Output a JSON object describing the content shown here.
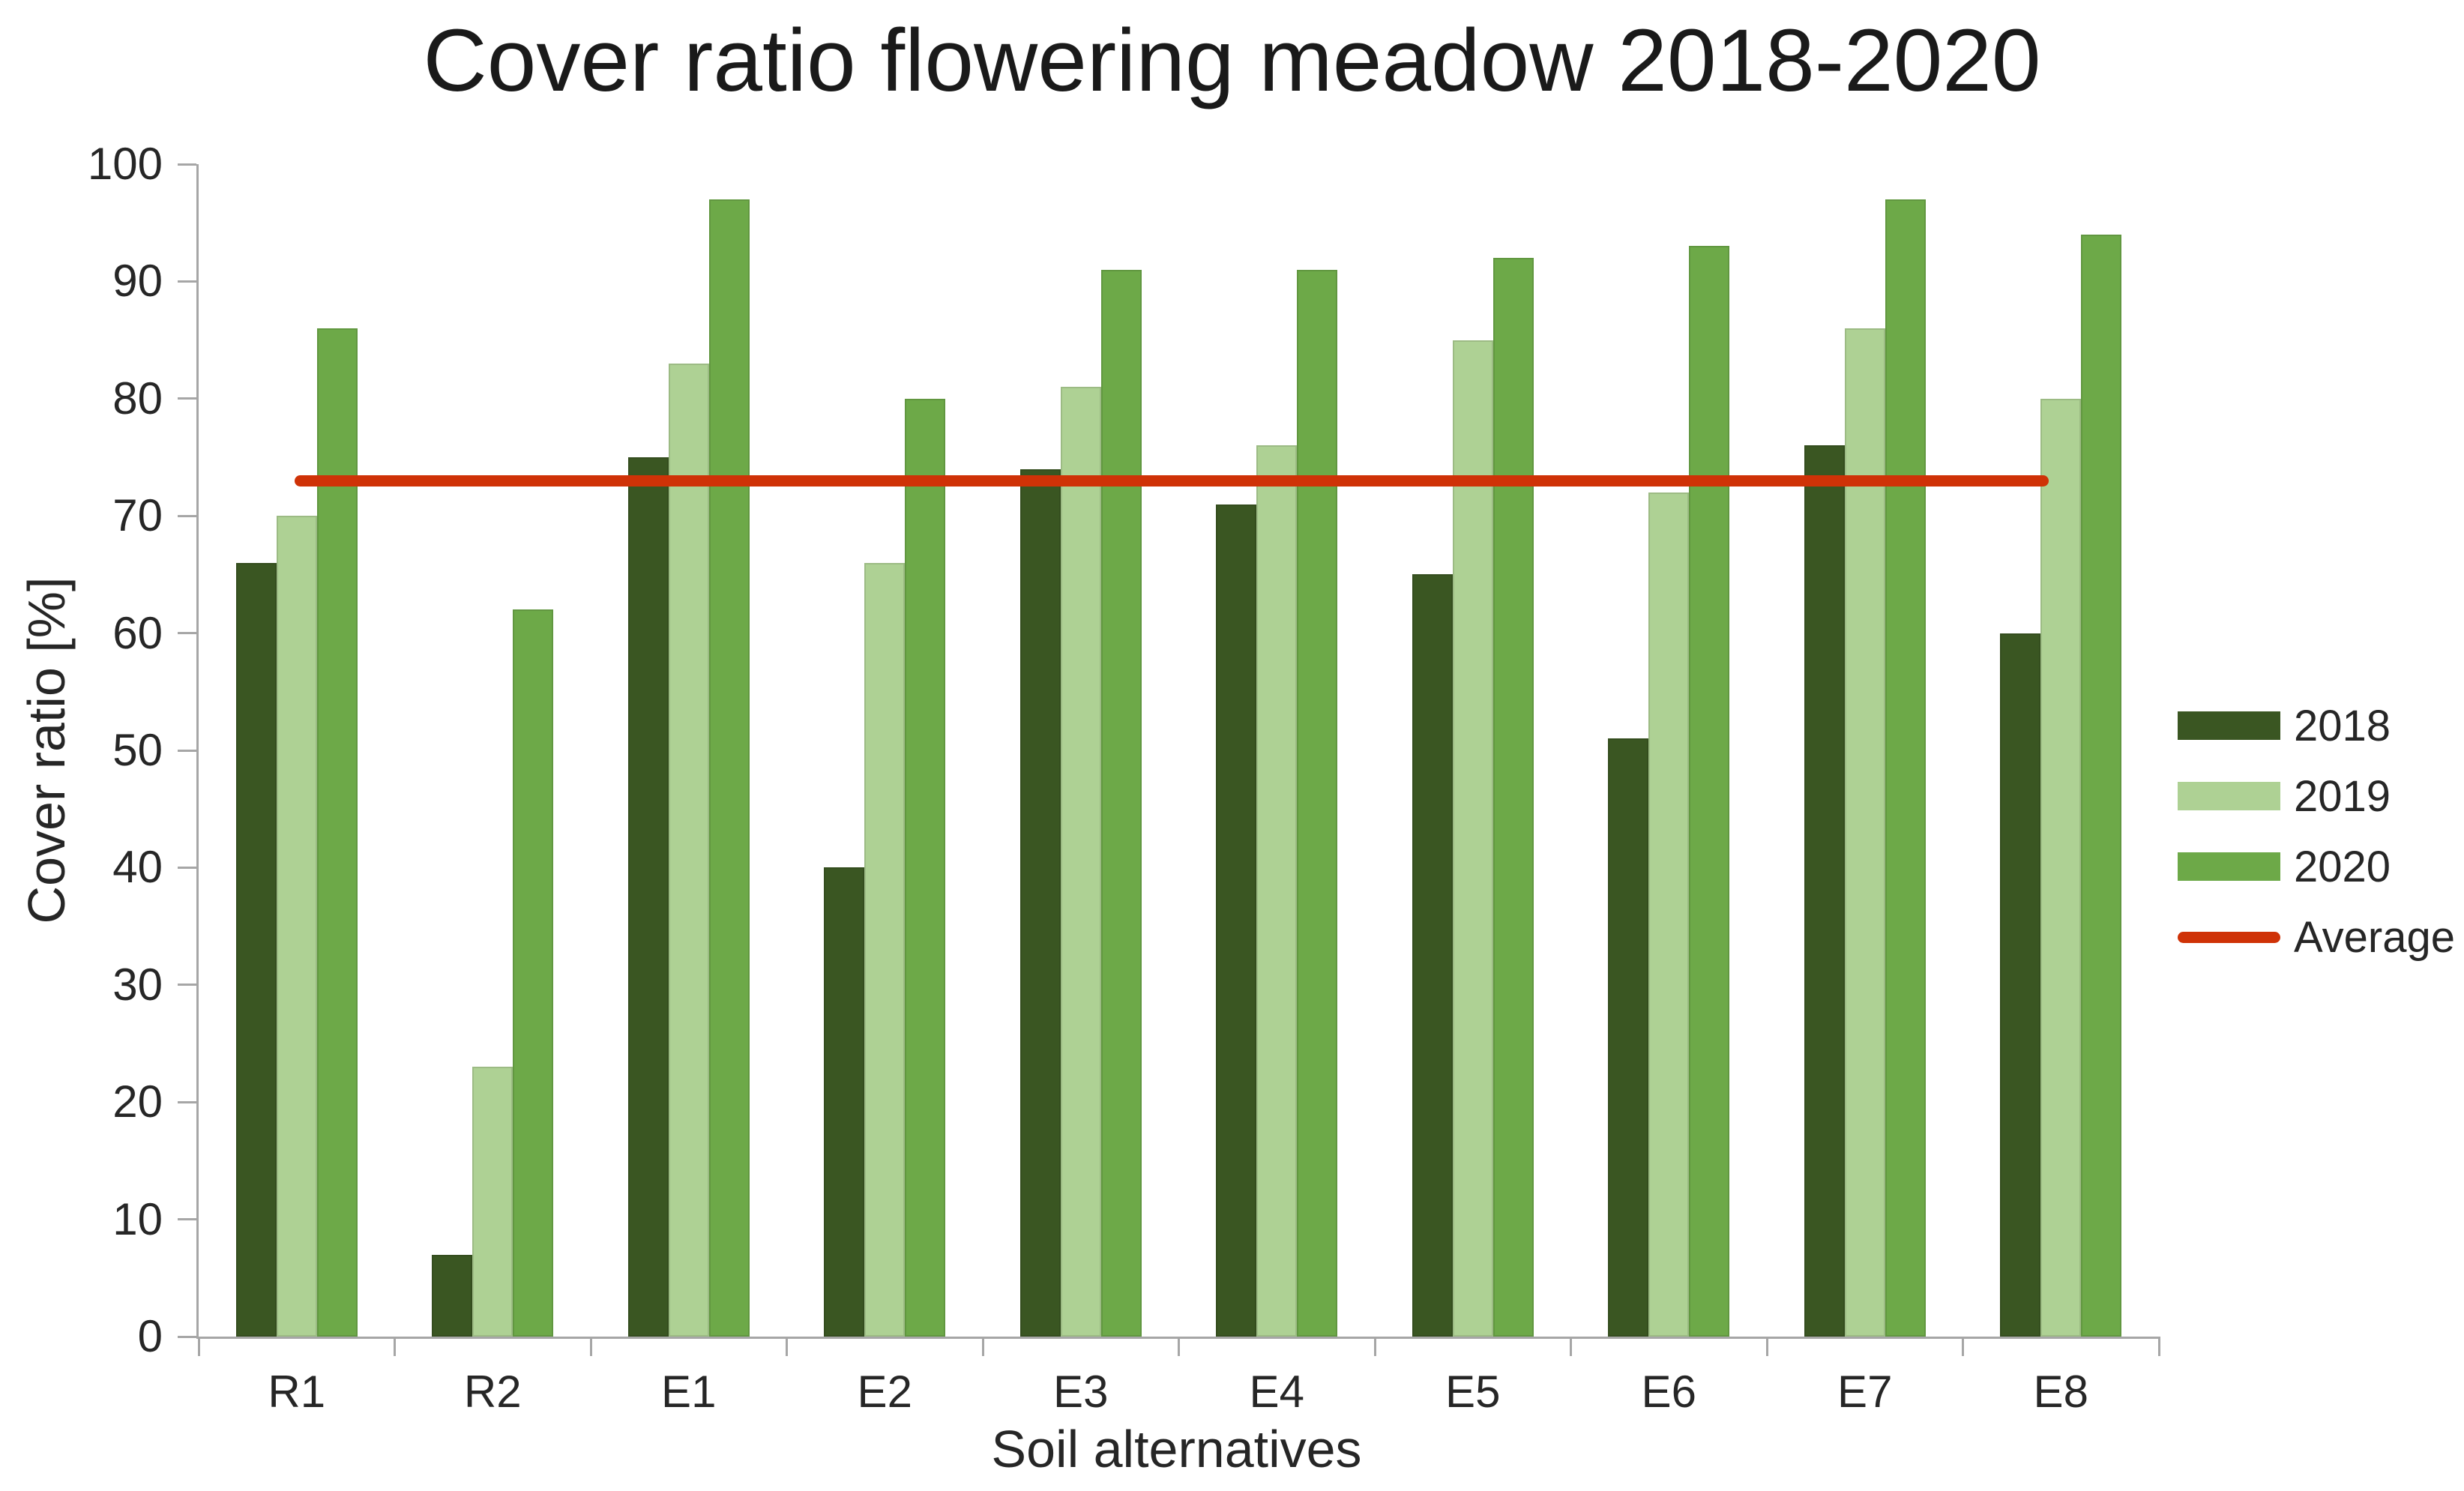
{
  "title": "Cover ratio flowering meadow 2018-2020",
  "chart_data": {
    "type": "bar",
    "title": "Cover ratio flowering meadow 2018-2020",
    "xlabel": "Soil alternatives",
    "ylabel": "Cover ratio [%]",
    "ylim": [
      0,
      100
    ],
    "y_ticks": [
      0,
      10,
      20,
      30,
      40,
      50,
      60,
      70,
      80,
      90,
      100
    ],
    "grid": false,
    "legend_position": "right",
    "background_color": "#ffffff",
    "axis_color": "#a6a6a6",
    "text_color": "#262626",
    "categories": [
      "R1",
      "R2",
      "E1",
      "E2",
      "E3",
      "E4",
      "E5",
      "E6",
      "E7",
      "E8"
    ],
    "series": [
      {
        "name": "2018",
        "color": "#3a5622",
        "values": [
          66,
          7,
          75,
          40,
          74,
          71,
          65,
          51,
          76,
          60
        ]
      },
      {
        "name": "2019",
        "color": "#aed194",
        "values": [
          70,
          23,
          83,
          66,
          81,
          76,
          85,
          72,
          86,
          80
        ]
      },
      {
        "name": "2020",
        "color": "#6da948",
        "values": [
          86,
          62,
          97,
          80,
          91,
          91,
          92,
          93,
          97,
          94
        ]
      }
    ],
    "average_line": {
      "label": "Average",
      "value": 73,
      "color": "#cf3207"
    }
  }
}
